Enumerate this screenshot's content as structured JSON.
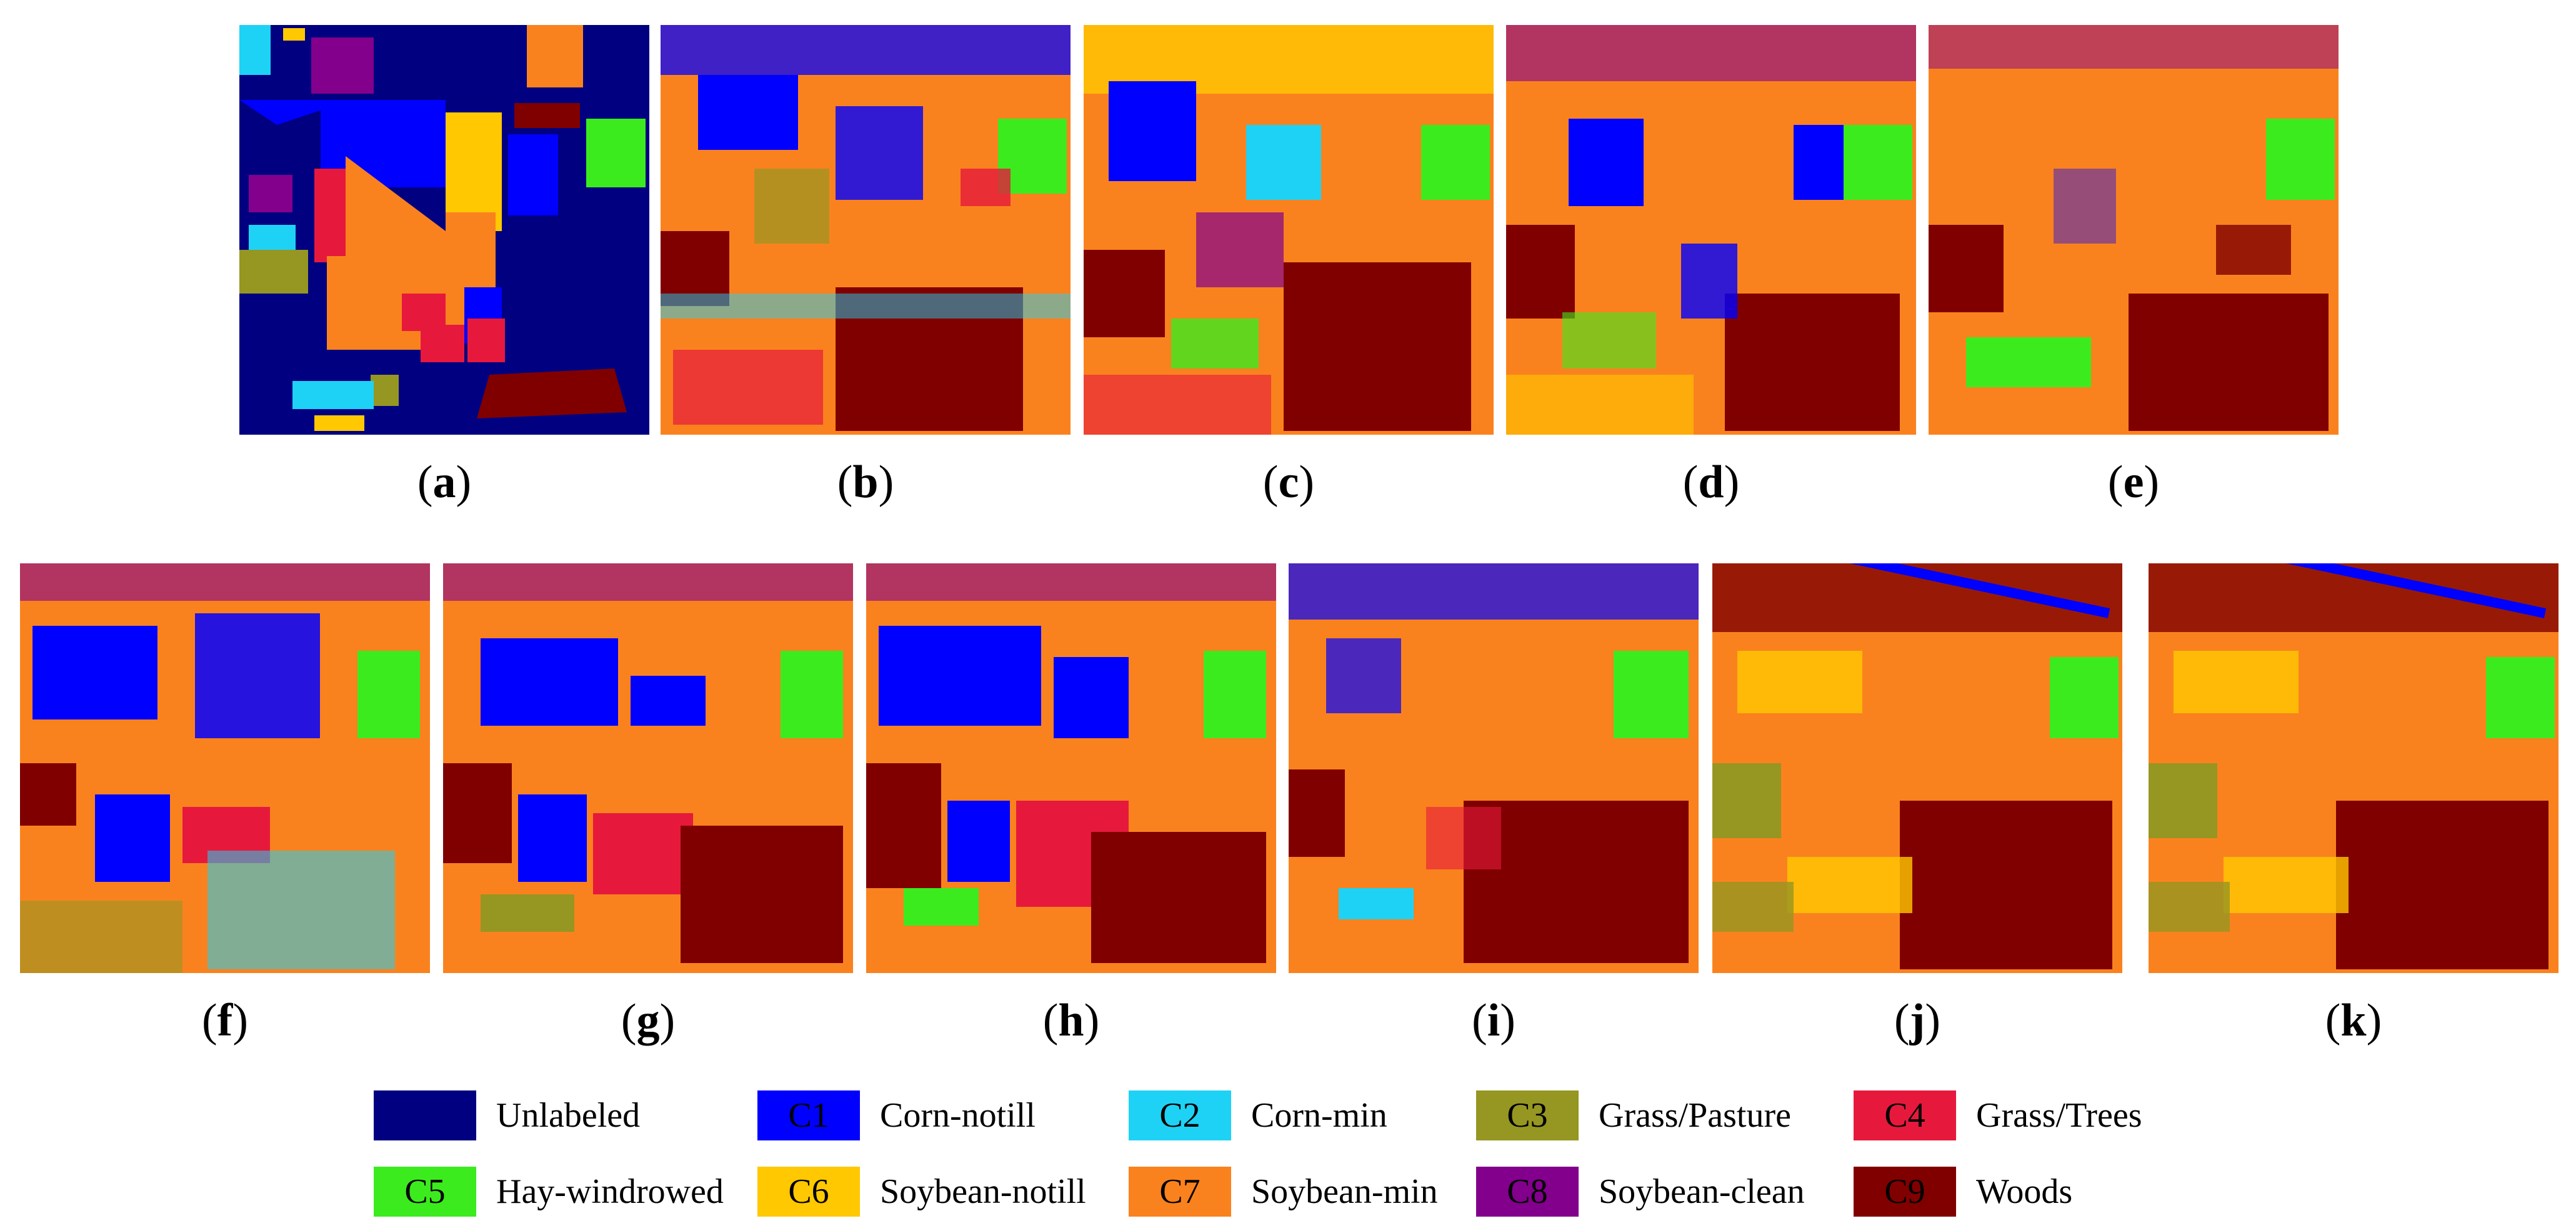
{
  "captions": {
    "a": "a",
    "b": "b",
    "c": "c",
    "d": "d",
    "e": "e",
    "f": "f",
    "g": "g",
    "h": "h",
    "i": "i",
    "j": "j",
    "k": "k"
  },
  "colors": {
    "unlabeled": "#000080",
    "c1": "#0000ff",
    "c2": "#1ed2f5",
    "c3": "#969622",
    "c4": "#e6193c",
    "c5": "#3ceb1e",
    "c6": "#ffc800",
    "c7": "#fa821e",
    "c8": "#82008c",
    "c9": "#800000"
  },
  "legend": [
    {
      "code": "",
      "label": "Unlabeled",
      "color": "#000080"
    },
    {
      "code": "C1",
      "label": "Corn-notill",
      "color": "#0000ff"
    },
    {
      "code": "C2",
      "label": "Corn-min",
      "color": "#1ed2f5"
    },
    {
      "code": "C3",
      "label": "Grass/Pasture",
      "color": "#969622"
    },
    {
      "code": "C4",
      "label": "Grass/Trees",
      "color": "#e6193c"
    },
    {
      "code": "C5",
      "label": "Hay-windrowed",
      "color": "#3ceb1e"
    },
    {
      "code": "C6",
      "label": "Soybean-notill",
      "color": "#ffc800"
    },
    {
      "code": "C7",
      "label": "Soybean-min",
      "color": "#fa821e"
    },
    {
      "code": "C8",
      "label": "Soybean-clean",
      "color": "#82008c"
    },
    {
      "code": "C9",
      "label": "Woods",
      "color": "#800000"
    }
  ]
}
